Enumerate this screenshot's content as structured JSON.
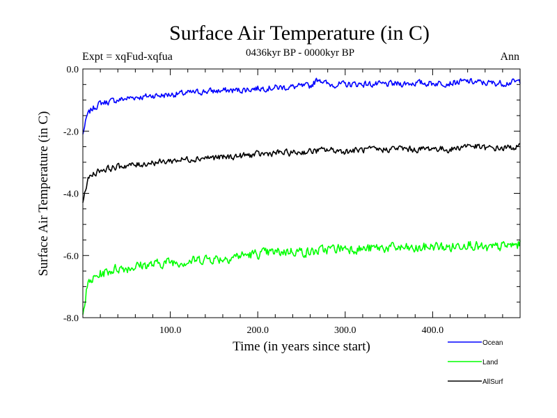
{
  "chart_data": {
    "type": "line",
    "title": "Surface Air Temperature (in C)",
    "subtitle": "0436kyr BP - 0000kyr BP",
    "left_label": "Expt = xqFud-xqfua",
    "right_label": "Ann",
    "xlabel": "Time (in years since start)",
    "ylabel": "Surface Air Temperature (in C)",
    "xlim": [
      0,
      500
    ],
    "ylim": [
      -8.0,
      0.0
    ],
    "x_ticks": [
      100,
      200,
      300,
      400
    ],
    "x_tick_labels": [
      "100.0",
      "200.0",
      "300.0",
      "400.0"
    ],
    "y_ticks": [
      0,
      -2,
      -4,
      -6,
      -8
    ],
    "y_tick_labels": [
      "0.0",
      "-2.0",
      "-4.0",
      "-6.0",
      "-8.0"
    ],
    "legend_position": "bottom-right",
    "series": [
      {
        "name": "Ocean",
        "color": "#0000ff",
        "x": [
          0,
          5,
          10,
          20,
          30,
          40,
          50,
          60,
          70,
          80,
          90,
          100,
          120,
          140,
          160,
          180,
          200,
          220,
          240,
          260,
          270,
          280,
          300,
          320,
          340,
          360,
          380,
          400,
          420,
          440,
          460,
          480,
          500
        ],
        "values": [
          -2.1,
          -1.5,
          -1.3,
          -1.1,
          -1.05,
          -1.0,
          -0.95,
          -0.9,
          -0.9,
          -0.85,
          -0.85,
          -0.82,
          -0.78,
          -0.72,
          -0.7,
          -0.68,
          -0.62,
          -0.6,
          -0.58,
          -0.55,
          -0.3,
          -0.5,
          -0.5,
          -0.48,
          -0.5,
          -0.48,
          -0.45,
          -0.46,
          -0.45,
          -0.4,
          -0.45,
          -0.46,
          -0.4
        ]
      },
      {
        "name": "Land",
        "color": "#00ff00",
        "x": [
          0,
          5,
          10,
          20,
          30,
          40,
          50,
          60,
          70,
          80,
          90,
          100,
          120,
          140,
          160,
          180,
          200,
          220,
          240,
          260,
          280,
          300,
          320,
          340,
          360,
          380,
          400,
          420,
          440,
          460,
          480,
          500
        ],
        "values": [
          -7.9,
          -7.0,
          -6.8,
          -6.6,
          -6.5,
          -6.4,
          -6.4,
          -6.35,
          -6.3,
          -6.3,
          -6.25,
          -6.2,
          -6.2,
          -6.1,
          -6.1,
          -6.0,
          -5.95,
          -5.9,
          -5.85,
          -5.9,
          -5.8,
          -5.75,
          -5.8,
          -5.75,
          -5.75,
          -5.8,
          -5.7,
          -5.75,
          -5.6,
          -5.8,
          -5.7,
          -5.65
        ]
      },
      {
        "name": "AllSurf",
        "color": "#000000",
        "x": [
          0,
          5,
          10,
          20,
          30,
          40,
          50,
          60,
          70,
          80,
          90,
          100,
          120,
          140,
          160,
          180,
          200,
          220,
          240,
          260,
          280,
          300,
          320,
          340,
          360,
          380,
          400,
          420,
          440,
          460,
          480,
          500
        ],
        "values": [
          -4.3,
          -3.6,
          -3.4,
          -3.25,
          -3.2,
          -3.15,
          -3.1,
          -3.1,
          -3.05,
          -3.0,
          -3.0,
          -2.95,
          -2.9,
          -2.85,
          -2.85,
          -2.8,
          -2.75,
          -2.7,
          -2.7,
          -2.65,
          -2.6,
          -2.65,
          -2.6,
          -2.6,
          -2.55,
          -2.6,
          -2.55,
          -2.6,
          -2.45,
          -2.55,
          -2.55,
          -2.5
        ]
      }
    ]
  }
}
